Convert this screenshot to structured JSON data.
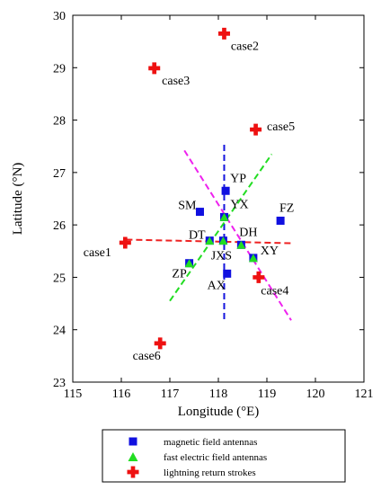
{
  "chart_data": {
    "type": "scatter",
    "title": "",
    "xlabel": "Longitude (°E)",
    "ylabel": "Latitude (°N)",
    "xlim": [
      115,
      121
    ],
    "ylim": [
      23,
      30
    ],
    "xticks": [
      115,
      116,
      117,
      118,
      119,
      120,
      121
    ],
    "yticks": [
      23,
      24,
      25,
      26,
      27,
      28,
      29,
      30
    ],
    "grid": false,
    "legend": {
      "placement": "bottom-center",
      "entries": [
        {
          "label": "magnetic field antennas",
          "marker": "square",
          "color": "#1010e0"
        },
        {
          "label": "fast electric field antennas",
          "marker": "triangle",
          "color": "#22dd22"
        },
        {
          "label": "lightning return strokes",
          "marker": "plus",
          "color": "#ee1111"
        }
      ]
    },
    "stations": [
      {
        "name": "YP",
        "x": 118.15,
        "y": 26.65,
        "magnetic": true,
        "electric": false
      },
      {
        "name": "SM",
        "x": 117.62,
        "y": 26.25,
        "magnetic": true,
        "electric": false
      },
      {
        "name": "YX",
        "x": 118.12,
        "y": 26.15,
        "magnetic": true,
        "electric": true
      },
      {
        "name": "FZ",
        "x": 119.28,
        "y": 26.08,
        "magnetic": true,
        "electric": false
      },
      {
        "name": "DT",
        "x": 117.82,
        "y": 25.7,
        "magnetic": true,
        "electric": true
      },
      {
        "name": "JXS",
        "x": 118.1,
        "y": 25.7,
        "magnetic": true,
        "electric": true
      },
      {
        "name": "DH",
        "x": 118.47,
        "y": 25.62,
        "magnetic": true,
        "electric": true
      },
      {
        "name": "XY",
        "x": 118.72,
        "y": 25.37,
        "magnetic": true,
        "electric": true
      },
      {
        "name": "ZP",
        "x": 117.4,
        "y": 25.27,
        "magnetic": true,
        "electric": true
      },
      {
        "name": "AX",
        "x": 118.18,
        "y": 25.07,
        "magnetic": true,
        "electric": false
      }
    ],
    "strokes": [
      {
        "name": "case1",
        "x": 116.08,
        "y": 25.66
      },
      {
        "name": "case2",
        "x": 118.12,
        "y": 29.65
      },
      {
        "name": "case3",
        "x": 116.68,
        "y": 28.99
      },
      {
        "name": "case4",
        "x": 118.83,
        "y": 25.0
      },
      {
        "name": "case5",
        "x": 118.77,
        "y": 27.82
      },
      {
        "name": "case6",
        "x": 116.8,
        "y": 23.74
      }
    ],
    "lines": [
      {
        "color": "#1515dd",
        "x": [
          118.12,
          118.12
        ],
        "y": [
          24.2,
          27.55
        ]
      },
      {
        "color": "#ee2222",
        "x": [
          116.1,
          119.5
        ],
        "y": [
          25.72,
          25.65
        ]
      },
      {
        "color": "#22dd22",
        "x": [
          117.0,
          119.1
        ],
        "y": [
          24.55,
          27.35
        ]
      },
      {
        "color": "#ee22ee",
        "x": [
          117.3,
          119.5
        ],
        "y": [
          27.42,
          24.18
        ]
      }
    ]
  }
}
